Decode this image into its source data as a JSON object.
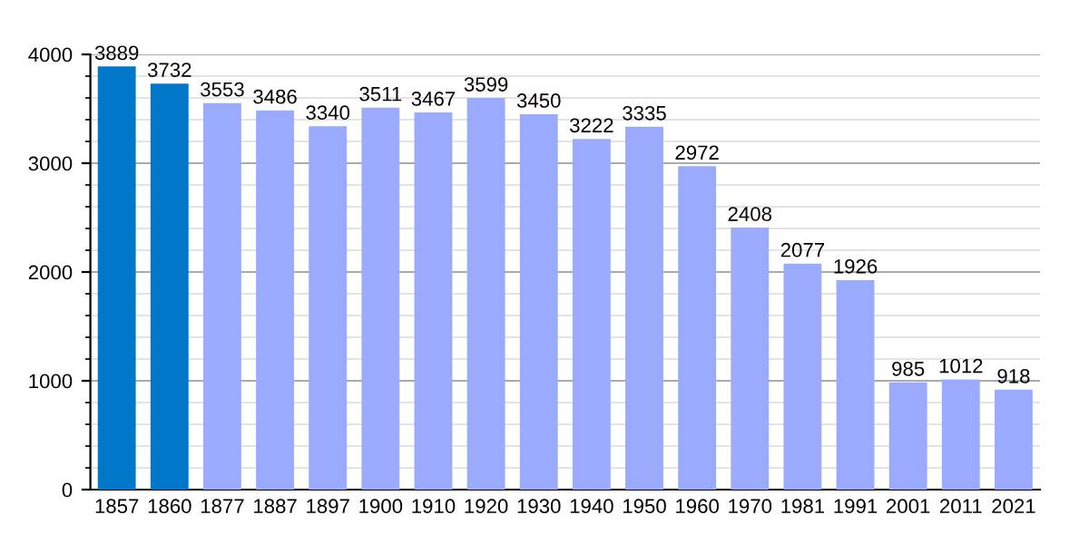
{
  "chart_data": {
    "type": "bar",
    "categories": [
      "1857",
      "1860",
      "1877",
      "1887",
      "1897",
      "1900",
      "1910",
      "1920",
      "1930",
      "1940",
      "1950",
      "1960",
      "1970",
      "1981",
      "1991",
      "2001",
      "2011",
      "2021"
    ],
    "values": [
      3889,
      3732,
      3553,
      3486,
      3340,
      3511,
      3467,
      3599,
      3450,
      3222,
      3335,
      2972,
      2408,
      2077,
      1926,
      985,
      1012,
      918
    ],
    "colors": [
      "#0077c8",
      "#0077c8",
      "#99aaff",
      "#99aaff",
      "#99aaff",
      "#99aaff",
      "#99aaff",
      "#99aaff",
      "#99aaff",
      "#99aaff",
      "#99aaff",
      "#99aaff",
      "#99aaff",
      "#99aaff",
      "#99aaff",
      "#99aaff",
      "#99aaff",
      "#99aaff"
    ],
    "ylim": [
      0,
      4000
    ],
    "yticks": [
      0,
      1000,
      2000,
      3000,
      4000
    ],
    "grid": "y",
    "data_labels": true
  }
}
